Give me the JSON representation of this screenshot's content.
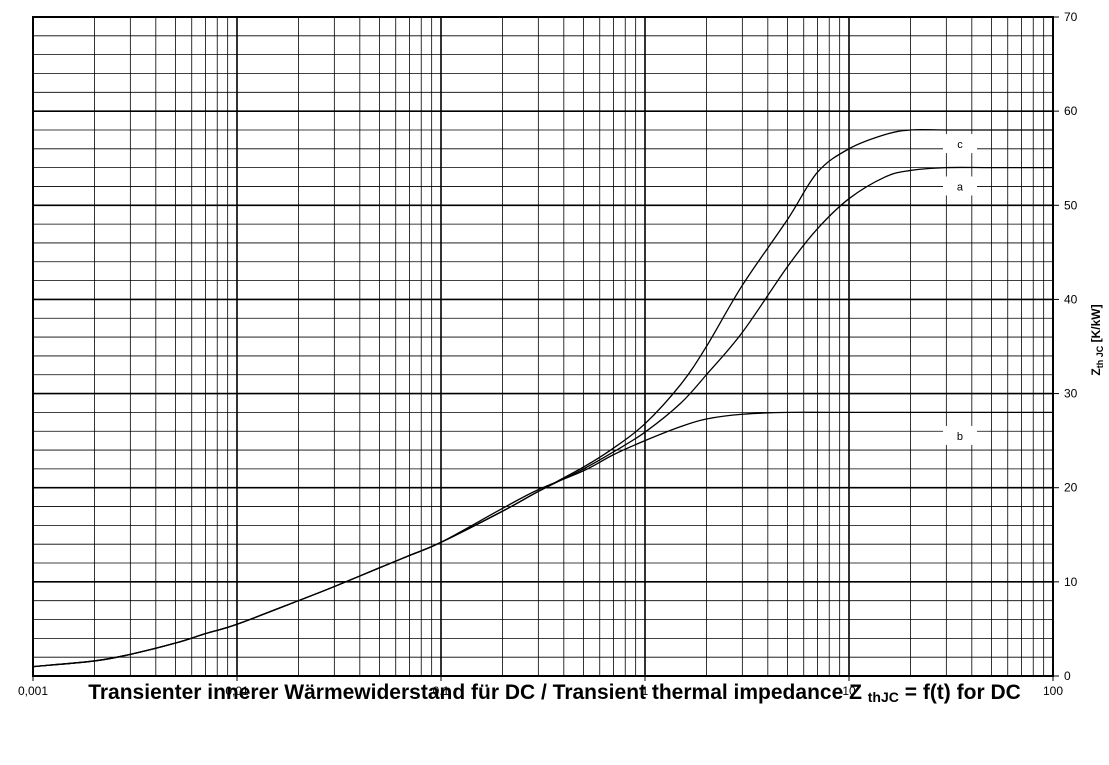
{
  "chart_data": {
    "type": "line",
    "title_parts": {
      "main": "Transienter innerer Wärmewiderstand für DC / Transient thermal impedance Z",
      "sub": "thJC",
      "end": " = f(t) for DC"
    },
    "xlabel": "",
    "ylabel": {
      "base": "Z",
      "sub": "th JC",
      "unit": " [K/kW]"
    },
    "x_scale": "log",
    "xlim": [
      0.001,
      100
    ],
    "ylim": [
      0,
      70
    ],
    "x_tick_labels": [
      "0,001",
      "0,01",
      "0,1",
      "1",
      "10",
      "100"
    ],
    "y_tick_labels": [
      "0",
      "10",
      "20",
      "30",
      "40",
      "50",
      "60",
      "70"
    ],
    "grid": true,
    "y_axis_position": "right",
    "series": [
      {
        "name": "a",
        "label": "a",
        "label_point": [
          35,
          52
        ],
        "x": [
          0.001,
          0.002,
          0.003,
          0.005,
          0.007,
          0.01,
          0.02,
          0.03,
          0.05,
          0.07,
          0.1,
          0.2,
          0.3,
          0.5,
          0.7,
          1,
          1.5,
          2,
          3,
          5,
          7,
          10,
          15,
          20,
          30,
          50,
          100
        ],
        "values": [
          1,
          1.6,
          2.3,
          3.5,
          4.5,
          5.5,
          8,
          9.5,
          11.5,
          12.8,
          14.2,
          17.5,
          19.6,
          22,
          23.8,
          25.9,
          29,
          32,
          36.5,
          43.5,
          47.5,
          50.7,
          53,
          53.7,
          54,
          54,
          54
        ]
      },
      {
        "name": "b",
        "label": "b",
        "label_point": [
          35,
          25.5
        ],
        "x": [
          0.001,
          0.002,
          0.003,
          0.005,
          0.007,
          0.01,
          0.02,
          0.03,
          0.05,
          0.07,
          0.1,
          0.2,
          0.3,
          0.5,
          0.7,
          1,
          1.5,
          2,
          3,
          5,
          10,
          100
        ],
        "values": [
          1,
          1.6,
          2.3,
          3.5,
          4.5,
          5.5,
          8,
          9.5,
          11.5,
          12.8,
          14.2,
          17.8,
          19.8,
          21.8,
          23.5,
          25,
          26.5,
          27.3,
          27.8,
          28,
          28,
          28
        ]
      },
      {
        "name": "c",
        "label": "c",
        "label_point": [
          35,
          56.5
        ],
        "x": [
          0.001,
          0.002,
          0.003,
          0.005,
          0.007,
          0.01,
          0.02,
          0.03,
          0.05,
          0.07,
          0.1,
          0.2,
          0.3,
          0.5,
          0.7,
          1,
          1.5,
          2,
          3,
          5,
          7,
          10,
          15,
          20,
          30,
          50,
          100
        ],
        "values": [
          1,
          1.6,
          2.3,
          3.5,
          4.5,
          5.5,
          8,
          9.5,
          11.5,
          12.8,
          14.2,
          17.5,
          19.6,
          22.2,
          24.2,
          26.8,
          31,
          35,
          41.5,
          48.5,
          53.5,
          56,
          57.5,
          58,
          58,
          58,
          58
        ]
      }
    ]
  }
}
